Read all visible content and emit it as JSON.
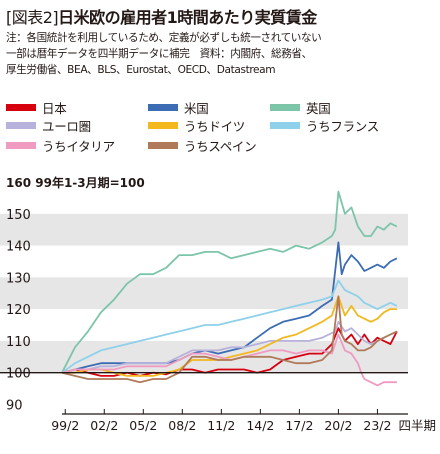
{
  "header": {
    "figure_tag": "[図表2]",
    "title": "日米欧の雇用者1時間あたり実質賃金"
  },
  "note": {
    "line1": "注：各国統計を利用しているため、定義が必ずしも統一されていない",
    "line2": "一部は暦年データを四半期データに補完　資料：内閣府、総務省、",
    "line3": "厚生労働省、BEA、BLS、Eurostat、OECD、Datastream"
  },
  "chart_data": {
    "type": "line",
    "title": "日米欧の雇用者1時間あたり実質賃金",
    "ylabel": "99年1-3月期=100",
    "xlabel": "四半期",
    "ylim": [
      87,
      160
    ],
    "xlim": [
      1999.0,
      2025.6
    ],
    "y_ticks": [
      90,
      100,
      110,
      120,
      130,
      140,
      150,
      160
    ],
    "y_tick_labels": [
      "90",
      "100",
      "110",
      "120",
      "130",
      "140",
      "150",
      "160"
    ],
    "x_ticks": [
      1999.25,
      2002.25,
      2005.25,
      2008.25,
      2011.25,
      2014.25,
      2017.25,
      2020.25,
      2023.25
    ],
    "x_tick_labels": [
      "99/2",
      "02/2",
      "05/2",
      "08/2",
      "11/2",
      "14/2",
      "17/2",
      "20/2",
      "23/2"
    ],
    "x_unit_label": "四半期",
    "y_unit_label": "99年1-3月期=100",
    "baseline": 100,
    "grid": "horizontal bands",
    "series": [
      {
        "name": "日本",
        "color": "#d7000f",
        "x": [
          1999.0,
          2000.0,
          2001.0,
          2002.0,
          2003.0,
          2004.0,
          2005.0,
          2006.0,
          2007.0,
          2008.0,
          2009.0,
          2010.0,
          2011.0,
          2012.0,
          2013.0,
          2014.0,
          2015.0,
          2016.0,
          2017.0,
          2018.0,
          2019.0,
          2019.75,
          2020.25,
          2020.75,
          2021.25,
          2021.75,
          2022.25,
          2022.75,
          2023.25,
          2023.75,
          2024.25,
          2024.75
        ],
        "y": [
          100,
          101,
          100,
          99,
          99,
          100,
          99,
          100,
          99.5,
          101,
          101,
          100,
          101,
          101,
          101,
          100,
          101,
          104,
          105,
          106,
          106,
          109,
          114,
          110,
          112,
          109,
          112,
          109,
          111,
          110,
          109,
          113
        ]
      },
      {
        "name": "米国",
        "color": "#3b6cb4",
        "x": [
          1999.0,
          2000.0,
          2001.0,
          2002.0,
          2003.0,
          2004.0,
          2005.0,
          2006.0,
          2007.0,
          2008.0,
          2009.0,
          2010.0,
          2011.0,
          2012.0,
          2013.0,
          2014.0,
          2015.0,
          2016.0,
          2017.0,
          2018.0,
          2019.0,
          2019.75,
          2020.25,
          2020.5,
          2020.75,
          2021.25,
          2021.75,
          2022.25,
          2022.75,
          2023.25,
          2023.75,
          2024.25,
          2024.75
        ],
        "y": [
          100,
          101,
          102,
          103,
          103,
          103,
          103,
          103,
          103,
          104,
          106,
          107,
          106,
          107,
          108,
          111,
          114,
          116,
          117,
          118,
          121,
          123,
          141,
          131,
          134,
          137,
          135,
          132,
          133,
          134,
          133,
          135,
          136
        ]
      },
      {
        "name": "英国",
        "color": "#7cc5a8",
        "x": [
          1999.0,
          2000.0,
          2001.0,
          2002.0,
          2003.0,
          2004.0,
          2005.0,
          2006.0,
          2007.0,
          2008.0,
          2009.0,
          2010.0,
          2011.0,
          2012.0,
          2013.0,
          2014.0,
          2015.0,
          2016.0,
          2017.0,
          2018.0,
          2019.0,
          2019.75,
          2020.0,
          2020.25,
          2020.75,
          2021.25,
          2021.75,
          2022.25,
          2022.75,
          2023.25,
          2023.75,
          2024.25,
          2024.75
        ],
        "y": [
          100,
          108,
          113,
          119,
          123,
          128,
          131,
          131,
          133,
          137,
          137,
          138,
          138,
          136,
          137,
          138,
          139,
          138,
          140,
          139,
          141,
          143,
          145,
          157,
          150,
          152,
          146,
          143,
          143,
          146,
          145,
          147,
          146
        ]
      },
      {
        "name": "ユーロ圏",
        "color": "#b6b2db",
        "x": [
          1999.0,
          2000.0,
          2001.0,
          2002.0,
          2003.0,
          2004.0,
          2005.0,
          2006.0,
          2007.0,
          2008.0,
          2009.0,
          2010.0,
          2011.0,
          2012.0,
          2013.0,
          2014.0,
          2015.0,
          2016.0,
          2017.0,
          2018.0,
          2019.0,
          2020.0,
          2020.25,
          2020.75,
          2021.25,
          2021.75,
          2022.25,
          2022.75,
          2023.25,
          2023.75,
          2024.25,
          2024.75
        ],
        "y": [
          100,
          101,
          101,
          102,
          102,
          103,
          103,
          103,
          103,
          105,
          107,
          107,
          107,
          108,
          108,
          109,
          110,
          110,
          110,
          110,
          111,
          113,
          116,
          113,
          114,
          112,
          110,
          109,
          110,
          111,
          112,
          113
        ]
      },
      {
        "name": "うちドイツ",
        "color": "#f2b81e",
        "x": [
          1999.0,
          2000.0,
          2001.0,
          2002.0,
          2003.0,
          2004.0,
          2005.0,
          2006.0,
          2007.0,
          2008.0,
          2009.0,
          2010.0,
          2011.0,
          2012.0,
          2013.0,
          2014.0,
          2015.0,
          2016.0,
          2017.0,
          2018.0,
          2019.0,
          2019.75,
          2020.25,
          2020.75,
          2021.25,
          2021.75,
          2022.25,
          2022.75,
          2023.25,
          2023.75,
          2024.25,
          2024.75
        ],
        "y": [
          100,
          100,
          101,
          101,
          100,
          99,
          99,
          99,
          100,
          101,
          104,
          104,
          104,
          105,
          106,
          107,
          109,
          111,
          112,
          114,
          116,
          118,
          124,
          118,
          121,
          118,
          117,
          116,
          117,
          119,
          120,
          120
        ]
      },
      {
        "name": "うちフランス",
        "color": "#8fd0ea",
        "x": [
          1999.0,
          2000.0,
          2001.0,
          2002.0,
          2003.0,
          2004.0,
          2005.0,
          2006.0,
          2007.0,
          2008.0,
          2009.0,
          2010.0,
          2011.0,
          2012.0,
          2013.0,
          2014.0,
          2015.0,
          2016.0,
          2017.0,
          2018.0,
          2019.0,
          2019.75,
          2020.25,
          2020.75,
          2021.25,
          2021.75,
          2022.25,
          2022.75,
          2023.25,
          2023.75,
          2024.25,
          2024.75
        ],
        "y": [
          100,
          103,
          105,
          107,
          108,
          109,
          110,
          111,
          112,
          113,
          114,
          115,
          115,
          116,
          117,
          118,
          119,
          120,
          121,
          122,
          123,
          124,
          129,
          126,
          125,
          124,
          122,
          121,
          120,
          121,
          122,
          121
        ]
      },
      {
        "name": "うちイタリア",
        "color": "#ef9bc2",
        "x": [
          1999.0,
          2000.0,
          2001.0,
          2002.0,
          2003.0,
          2004.0,
          2005.0,
          2006.0,
          2007.0,
          2008.0,
          2009.0,
          2010.0,
          2011.0,
          2012.0,
          2013.0,
          2014.0,
          2015.0,
          2016.0,
          2017.0,
          2018.0,
          2019.0,
          2019.75,
          2020.25,
          2020.75,
          2021.25,
          2021.75,
          2022.0,
          2022.25,
          2022.75,
          2023.25,
          2023.75,
          2024.25,
          2024.75
        ],
        "y": [
          100,
          101,
          101,
          101,
          101,
          102,
          102,
          102,
          102,
          104,
          106,
          106,
          105,
          104,
          105,
          106,
          107,
          107,
          106,
          107,
          107,
          106,
          112,
          107,
          106,
          103,
          100,
          98,
          97,
          96,
          97,
          97,
          97
        ]
      },
      {
        "name": "うちスペイン",
        "color": "#b07a5a",
        "x": [
          1999.0,
          2000.0,
          2001.0,
          2002.0,
          2003.0,
          2004.0,
          2005.0,
          2006.0,
          2007.0,
          2008.0,
          2009.0,
          2010.0,
          2011.0,
          2012.0,
          2013.0,
          2014.0,
          2015.0,
          2016.0,
          2017.0,
          2018.0,
          2019.0,
          2019.75,
          2020.25,
          2020.5,
          2020.75,
          2021.25,
          2021.75,
          2022.25,
          2022.75,
          2023.25,
          2023.75,
          2024.25,
          2024.75
        ],
        "y": [
          100,
          99,
          98,
          98,
          98,
          98,
          97,
          98,
          98,
          100,
          105,
          105,
          104,
          104,
          105,
          105,
          105,
          104,
          103,
          103,
          104,
          107,
          124,
          112,
          110,
          109,
          107,
          107,
          108,
          110,
          111,
          112,
          113
        ]
      }
    ]
  }
}
